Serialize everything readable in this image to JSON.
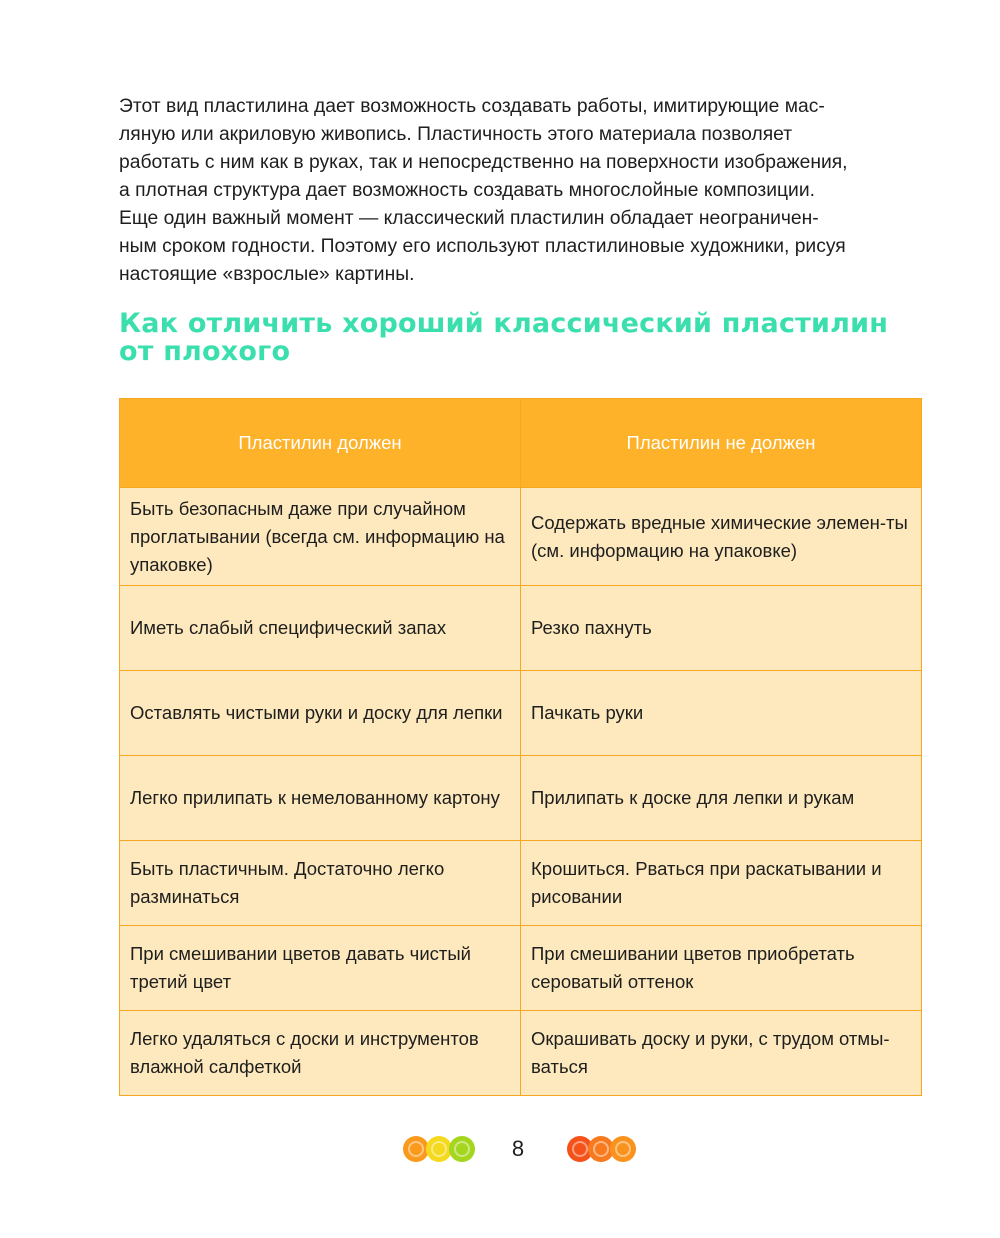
{
  "paragraph": [
    "Этот вид пластилина дает возможность создавать работы, имитирующие мас-",
    "ляную или акриловую живопись. Пластичность этого материала позволяет",
    "работать с ним как в руках, так и непосредственно на поверхности изображения,",
    "а плотная структура дает возможность создавать многослойные композиции.",
    "Еще один важный момент — классический пластилин обладает неограничен-",
    "ным сроком годности. Поэтому его используют пластилиновые художники, рисуя",
    "настоящие «взрослые» картины."
  ],
  "heading": {
    "line1": "Как отличить хороший классический пластилин",
    "line2": "от плохого"
  },
  "table": {
    "headers": [
      "Пластилин должен",
      "Пластилин не должен"
    ],
    "rows": [
      [
        "Быть безопасным даже при случайном проглатывании (всегда см. информацию на упаковке)",
        "Содержать вредные химические элемен-ты (см. информацию на упаковке)"
      ],
      [
        "Иметь слабый специфический запах",
        "Резко пахнуть"
      ],
      [
        "Оставлять чистыми руки и доску для лепки",
        "Пачкать руки"
      ],
      [
        "Легко прилипать к немелованному картону",
        "Прилипать к доске для лепки и рукам"
      ],
      [
        "Быть пластичным. Достаточно легко разминаться",
        "Крошиться. Рваться при раскатывании и рисовании"
      ],
      [
        "При смешивании цветов давать чистый третий цвет",
        "При смешивании цветов приобретать сероватый оттенок"
      ],
      [
        "Легко удаляться с доски и инструментов влажной салфеткой",
        "Окрашивать доску и руки, с трудом отмы-ваться"
      ]
    ]
  },
  "footer": {
    "page_number": "8",
    "left_swirl_colors": [
      "#f99a1c",
      "#f5d91e",
      "#a5d61e"
    ],
    "right_swirl_colors": [
      "#f5521a",
      "#f77a1e",
      "#f9931e"
    ]
  },
  "colors": {
    "heading": "#3bdfae",
    "table_header": "#fdb22a",
    "table_cell": "#fde9bd",
    "table_border": "#f5a623"
  }
}
